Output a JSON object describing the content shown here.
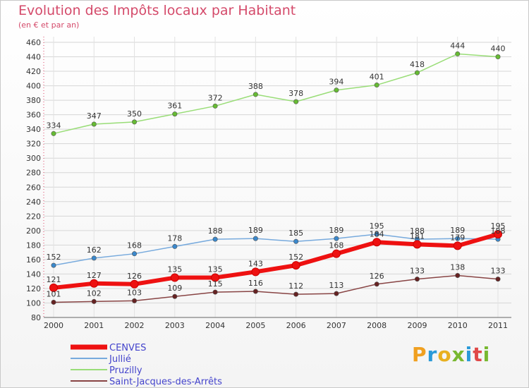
{
  "chart_data": {
    "type": "line",
    "title": "Evolution des Impôts locaux par Habitant",
    "subtitle": "(en € et par an)",
    "xlabel": "",
    "ylabel": "",
    "ylim": [
      80,
      460
    ],
    "yticks": [
      80,
      100,
      120,
      140,
      160,
      180,
      200,
      220,
      240,
      260,
      280,
      300,
      320,
      340,
      360,
      380,
      400,
      420,
      440,
      460
    ],
    "categories": [
      "2000",
      "2001",
      "2002",
      "2003",
      "2004",
      "2005",
      "2006",
      "2007",
      "2008",
      "2009",
      "2010",
      "2011"
    ],
    "grid": true,
    "legend_position": "bottom-left",
    "series": [
      {
        "name": "Pruzilly",
        "color": "#99dd77",
        "marker": "#66bb33",
        "values": [
          334,
          347,
          350,
          361,
          372,
          388,
          378,
          394,
          401,
          418,
          444,
          440
        ]
      },
      {
        "name": "Jullié",
        "color": "#77aadd",
        "marker": "#3a88cc",
        "values": [
          152,
          162,
          168,
          178,
          188,
          189,
          185,
          189,
          195,
          188,
          189,
          188
        ]
      },
      {
        "name": "Saint-Jacques-des-Arrêts",
        "color": "#884444",
        "marker": "#662222",
        "values": [
          101,
          102,
          103,
          109,
          115,
          116,
          112,
          113,
          126,
          133,
          138,
          133
        ]
      },
      {
        "name": "CENVES",
        "color": "#ee1111",
        "marker": "#ee1111",
        "values": [
          121,
          127,
          126,
          135,
          135,
          143,
          152,
          168,
          184,
          181,
          179,
          195
        ]
      }
    ],
    "legend_order": [
      "CENVES",
      "Jullié",
      "Pruzilly",
      "Saint-Jacques-des-Arrêts"
    ]
  },
  "logo": {
    "text": "Proxiti",
    "letters": [
      "P",
      "r",
      "o",
      "x",
      "i",
      "t",
      "i"
    ]
  }
}
